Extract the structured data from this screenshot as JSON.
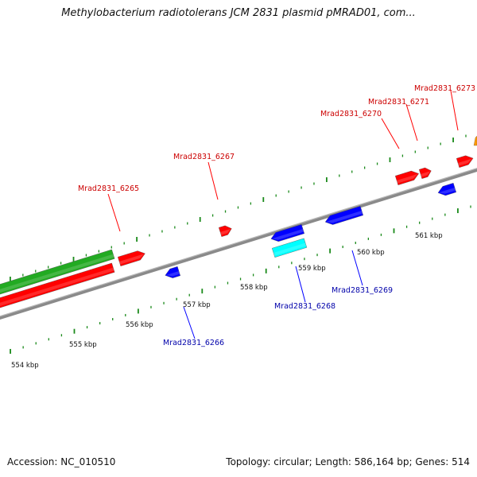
{
  "title": "Methylobacterium radiotolerans JCM 2831 plasmid pMRAD01, com...",
  "footer": {
    "accession": "Accession: NC_010510",
    "summary": "Topology: circular; Length: 586,164 bp; Genes: 514"
  },
  "colors": {
    "forward_gene": "#ff0000",
    "reverse_gene": "#0000ff",
    "forward_label": "#cc0000",
    "reverse_label": "#0000aa",
    "ticks": "#1a8a1a",
    "backbone": "#8a8a8a",
    "green_feature": "#22aa22",
    "cyan_feature": "#00ffff",
    "orange_feature": "#ff9900"
  },
  "scale_labels": [
    {
      "text": "554 kbp",
      "kbp": 554
    },
    {
      "text": "555 kbp",
      "kbp": 555
    },
    {
      "text": "556 kbp",
      "kbp": 556
    },
    {
      "text": "557 kbp",
      "kbp": 557
    },
    {
      "text": "558 kbp",
      "kbp": 558
    },
    {
      "text": "559 kbp",
      "kbp": 559
    },
    {
      "text": "560 kbp",
      "kbp": 560
    },
    {
      "text": "561 kbp",
      "kbp": 561
    }
  ],
  "forward_genes": [
    {
      "label": "Mrad2831_6265"
    },
    {
      "label": "Mrad2831_6267"
    },
    {
      "label": "Mrad2831_6270"
    },
    {
      "label": "Mrad2831_6271"
    },
    {
      "label": "Mrad2831_6273"
    }
  ],
  "reverse_genes": [
    {
      "label": "Mrad2831_6266"
    },
    {
      "label": "Mrad2831_6268"
    },
    {
      "label": "Mrad2831_6269"
    }
  ]
}
